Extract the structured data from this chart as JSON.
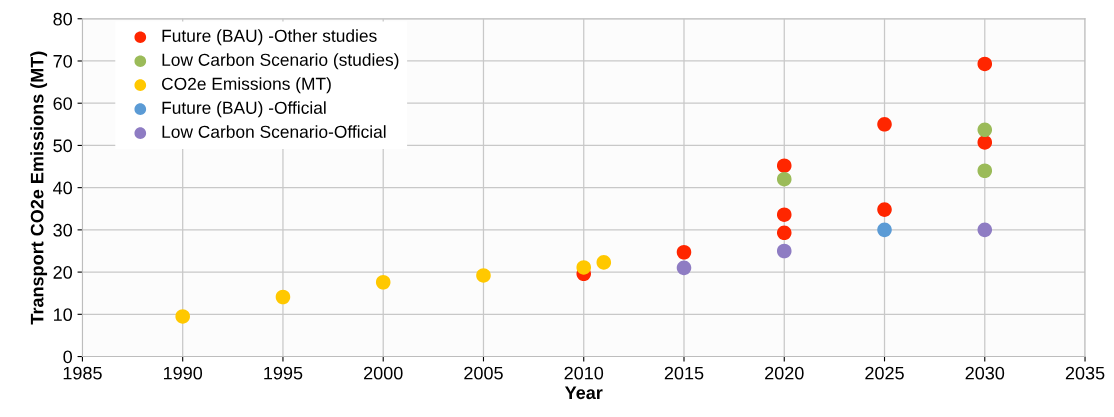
{
  "chart_data": {
    "type": "scatter",
    "xlabel": "Year",
    "ylabel": "Transport CO2e Emissions (MT)",
    "xlim": [
      1985,
      2035
    ],
    "xticks": [
      1985,
      1990,
      1995,
      2000,
      2005,
      2010,
      2015,
      2020,
      2025,
      2030,
      2035
    ],
    "ylim": [
      0,
      80
    ],
    "yticks": [
      0,
      10,
      20,
      30,
      40,
      50,
      60,
      70,
      80
    ],
    "grid": true,
    "legend": "top left",
    "marker": "circle",
    "series": [
      {
        "name": "Future (BAU) -Other studies",
        "color": "#ff2600",
        "x": [
          2010,
          2015,
          2020,
          2020,
          2020,
          2025,
          2025,
          2030,
          2030
        ],
        "values": [
          19.6,
          24.7,
          45.2,
          33.6,
          29.3,
          55,
          34.8,
          69.3,
          50.7
        ]
      },
      {
        "name": "Low Carbon Scenario (studies)",
        "color": "#9bbb59",
        "x": [
          2020,
          2030,
          2030
        ],
        "values": [
          42,
          53.7,
          44
        ]
      },
      {
        "name": "CO2e Emissions (MT)",
        "color": "#ffc800",
        "x": [
          1990,
          1995,
          2000,
          2005,
          2010,
          2011
        ],
        "values": [
          9.5,
          14.1,
          17.6,
          19.2,
          21.1,
          22.3
        ]
      },
      {
        "name": "Future (BAU) -Official",
        "color": "#5b9bd5",
        "x": [
          2025
        ],
        "values": [
          30
        ]
      },
      {
        "name": "Low Carbon Scenario-Official",
        "color": "#8e7cc3",
        "x": [
          2015,
          2020,
          2030
        ],
        "values": [
          21,
          25,
          30
        ]
      }
    ]
  }
}
